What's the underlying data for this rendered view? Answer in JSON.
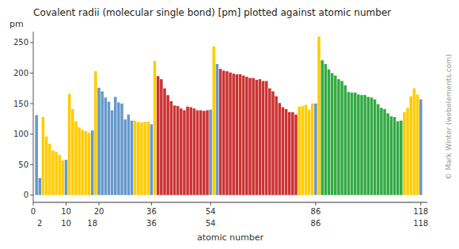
{
  "chart_data": {
    "type": "bar",
    "title": "Covalent radii (molecular single bond) [pm] plotted against atomic number",
    "ylabel": "pm",
    "xlabel": "atomic number",
    "x": [
      1,
      2,
      3,
      4,
      5,
      6,
      7,
      8,
      9,
      10,
      11,
      12,
      13,
      14,
      15,
      16,
      17,
      18,
      19,
      20,
      21,
      22,
      23,
      24,
      25,
      26,
      27,
      28,
      29,
      30,
      31,
      32,
      33,
      34,
      35,
      36,
      37,
      38,
      39,
      40,
      41,
      42,
      43,
      44,
      45,
      46,
      47,
      48,
      49,
      50,
      51,
      52,
      53,
      54,
      55,
      56,
      57,
      58,
      59,
      60,
      61,
      62,
      63,
      64,
      65,
      66,
      67,
      68,
      69,
      70,
      71,
      72,
      73,
      74,
      75,
      76,
      77,
      78,
      79,
      80,
      81,
      82,
      83,
      84,
      85,
      86,
      87,
      88,
      89,
      90,
      91,
      92,
      93,
      94,
      95,
      96,
      97,
      98,
      99,
      100,
      101,
      102,
      103,
      104,
      105,
      106,
      107,
      108,
      109,
      110,
      111,
      112,
      113,
      114,
      115,
      116,
      117,
      118
    ],
    "values": [
      131,
      28,
      128,
      96,
      84,
      73,
      71,
      66,
      57,
      58,
      166,
      141,
      121,
      111,
      107,
      105,
      102,
      106,
      203,
      176,
      170,
      160,
      153,
      139,
      161,
      152,
      150,
      124,
      132,
      122,
      122,
      120,
      119,
      120,
      120,
      116,
      220,
      195,
      190,
      175,
      164,
      154,
      147,
      146,
      142,
      139,
      145,
      144,
      142,
      139,
      139,
      138,
      139,
      140,
      244,
      215,
      207,
      204,
      203,
      201,
      199,
      198,
      198,
      196,
      194,
      192,
      192,
      189,
      190,
      187,
      187,
      175,
      170,
      162,
      151,
      144,
      141,
      136,
      136,
      132,
      145,
      146,
      148,
      140,
      150,
      150,
      260,
      221,
      215,
      206,
      200,
      196,
      190,
      187,
      180,
      169,
      168,
      168,
      165,
      164,
      164,
      161,
      160,
      157,
      149,
      143,
      141,
      134,
      129,
      128,
      121,
      122,
      136,
      143,
      162,
      175,
      165,
      157
    ],
    "colors": [
      "#6699cc",
      "#6699cc",
      "#ffcc00",
      "#ffcc00",
      "#ffcc00",
      "#ffcc00",
      "#ffcc00",
      "#ffcc00",
      "#ffcc00",
      "#6699cc",
      "#ffcc00",
      "#ffcc00",
      "#ffcc00",
      "#ffcc00",
      "#ffcc00",
      "#ffcc00",
      "#ffcc00",
      "#6699cc",
      "#ffcc00",
      "#6699cc",
      "#6699cc",
      "#6699cc",
      "#6699cc",
      "#6699cc",
      "#6699cc",
      "#6699cc",
      "#6699cc",
      "#6699cc",
      "#6699cc",
      "#6699cc",
      "#ffcc00",
      "#ffcc00",
      "#ffcc00",
      "#ffcc00",
      "#ffcc00",
      "#6699cc",
      "#ffcc00",
      "#cc3333",
      "#cc3333",
      "#cc3333",
      "#cc3333",
      "#cc3333",
      "#cc3333",
      "#cc3333",
      "#cc3333",
      "#cc3333",
      "#cc3333",
      "#cc3333",
      "#cc3333",
      "#cc3333",
      "#cc3333",
      "#cc3333",
      "#cc3333",
      "#6699cc",
      "#ffcc00",
      "#6699cc",
      "#cc3333",
      "#cc3333",
      "#cc3333",
      "#cc3333",
      "#cc3333",
      "#cc3333",
      "#cc3333",
      "#cc3333",
      "#cc3333",
      "#cc3333",
      "#cc3333",
      "#cc3333",
      "#cc3333",
      "#cc3333",
      "#cc3333",
      "#cc3333",
      "#cc3333",
      "#cc3333",
      "#cc3333",
      "#cc3333",
      "#cc3333",
      "#cc3333",
      "#cc3333",
      "#cc3333",
      "#ffcc00",
      "#ffcc00",
      "#ffcc00",
      "#ffcc00",
      "#ffcc00",
      "#6699cc",
      "#ffcc00",
      "#33aa44",
      "#33aa44",
      "#33aa44",
      "#33aa44",
      "#33aa44",
      "#33aa44",
      "#33aa44",
      "#33aa44",
      "#33aa44",
      "#33aa44",
      "#33aa44",
      "#33aa44",
      "#33aa44",
      "#33aa44",
      "#33aa44",
      "#33aa44",
      "#33aa44",
      "#33aa44",
      "#33aa44",
      "#33aa44",
      "#33aa44",
      "#33aa44",
      "#33aa44",
      "#33aa44",
      "#33aa44",
      "#ffcc00",
      "#ffcc00",
      "#ffcc00",
      "#ffcc00",
      "#ffcc00",
      "#6699cc"
    ],
    "xlim": [
      0,
      120
    ],
    "xticks": [
      0,
      10,
      20,
      36,
      54,
      86,
      118
    ],
    "ylim": [
      -12,
      268
    ],
    "yticks": [
      0,
      50,
      100,
      150,
      200,
      250
    ],
    "grid": false,
    "annotations": [
      {
        "x": 2,
        "text": "2"
      },
      {
        "x": 10,
        "text": "10"
      },
      {
        "x": 18,
        "text": "18"
      },
      {
        "x": 36,
        "text": "36"
      },
      {
        "x": 54,
        "text": "54"
      },
      {
        "x": 86,
        "text": "86"
      },
      {
        "x": 118,
        "text": "118"
      },
      {
        "text": "© Mark Winter (webelements.com)"
      }
    ]
  }
}
